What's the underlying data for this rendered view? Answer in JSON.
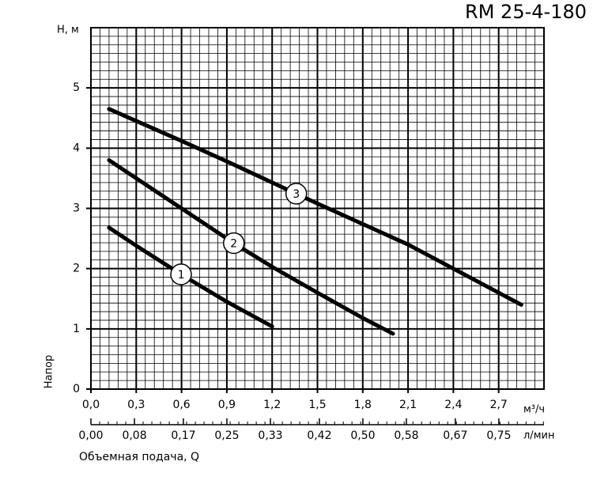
{
  "chart_data": {
    "type": "line",
    "title": "RM 25-4-180",
    "y_label": "H, м",
    "y_title": "Напор",
    "x_label": "м³/ч",
    "x2_label": "л/мин",
    "x_title": "Объемная подача, Q",
    "xlim": [
      0,
      3.0
    ],
    "ylim": [
      0,
      6
    ],
    "x2lim": [
      0,
      0.833
    ],
    "xticks": [
      {
        "value": 0,
        "label": "0,0"
      },
      {
        "value": 0.3,
        "label": "0,3"
      },
      {
        "value": 0.6,
        "label": "0,6"
      },
      {
        "value": 0.9,
        "label": "0,9"
      },
      {
        "value": 1.2,
        "label": "1,2"
      },
      {
        "value": 1.5,
        "label": "1,5"
      },
      {
        "value": 1.8,
        "label": "1,8"
      },
      {
        "value": 2.1,
        "label": "2,1"
      },
      {
        "value": 2.4,
        "label": "2,4"
      },
      {
        "value": 2.7,
        "label": "2,7"
      }
    ],
    "x2ticks": [
      {
        "value": 0,
        "label": "0,00"
      },
      {
        "value": 0.08,
        "label": "0,08"
      },
      {
        "value": 0.17,
        "label": "0,17"
      },
      {
        "value": 0.25,
        "label": "0,25"
      },
      {
        "value": 0.33,
        "label": "0,33"
      },
      {
        "value": 0.42,
        "label": "0,42"
      },
      {
        "value": 0.5,
        "label": "0,50"
      },
      {
        "value": 0.58,
        "label": "0,58"
      },
      {
        "value": 0.67,
        "label": "0,67"
      },
      {
        "value": 0.75,
        "label": "0,75"
      }
    ],
    "yticks": [
      0,
      1,
      2,
      3,
      4,
      5
    ],
    "grid": true,
    "series": [
      {
        "name": "1",
        "color": "#000000",
        "x": [
          0.12,
          0.3,
          0.6,
          0.9,
          1.2
        ],
        "values": [
          2.68,
          2.38,
          1.9,
          1.45,
          1.04
        ]
      },
      {
        "name": "2",
        "color": "#000000",
        "x": [
          0.12,
          0.6,
          0.96,
          1.2,
          1.5,
          1.8,
          2.0
        ],
        "values": [
          3.8,
          3.0,
          2.4,
          2.03,
          1.6,
          1.18,
          0.92
        ]
      },
      {
        "name": "3",
        "color": "#000000",
        "x": [
          0.12,
          0.6,
          0.9,
          1.5,
          2.1,
          2.4,
          2.85
        ],
        "values": [
          4.65,
          4.12,
          3.78,
          3.08,
          2.4,
          2.0,
          1.4
        ]
      }
    ]
  }
}
